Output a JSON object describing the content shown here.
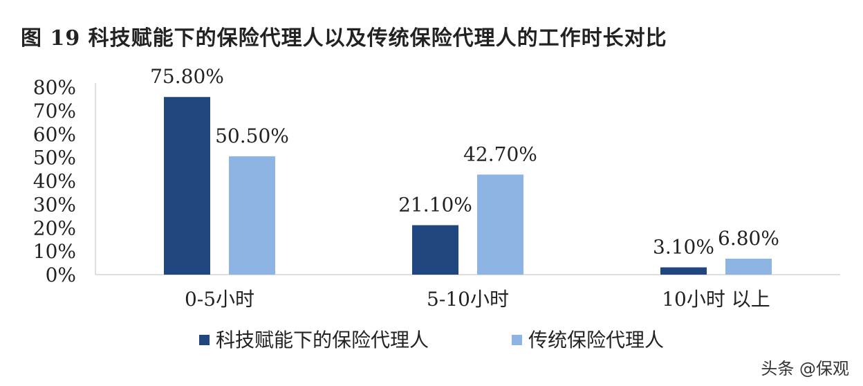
{
  "title": "图 19 科技赋能下的保险代理人以及传统保险代理人的工作时长对比",
  "watermark": "头条 @保观",
  "chart_data": {
    "type": "bar",
    "categories": [
      "0-5小时",
      "5-10小时",
      "10小时 以上"
    ],
    "series": [
      {
        "name": "科技赋能下的保险代理人",
        "values": [
          75.8,
          21.1,
          3.1
        ],
        "labels": [
          "75.80%",
          "21.10%",
          "3.10%"
        ],
        "color": "#1f467f"
      },
      {
        "name": "传统保险代理人",
        "values": [
          50.5,
          42.7,
          6.8
        ],
        "labels": [
          "50.50%",
          "42.70%",
          "6.80%"
        ],
        "color": "#8eb4e3"
      }
    ],
    "ylim": [
      0,
      80
    ],
    "yticks": [
      "0%",
      "10%",
      "20%",
      "30%",
      "40%",
      "50%",
      "60%",
      "70%",
      "80%"
    ],
    "grid": false,
    "legend": "bottom"
  }
}
